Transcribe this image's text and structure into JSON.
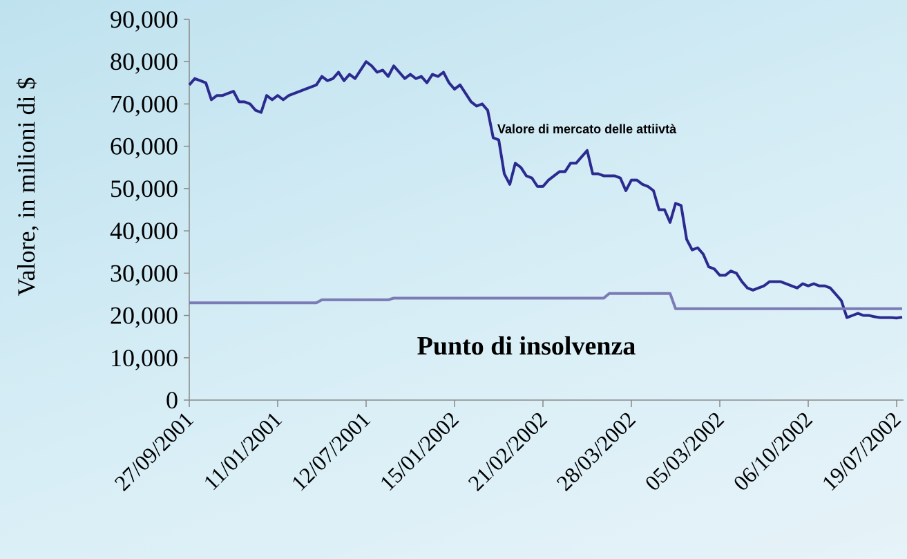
{
  "chart_data": {
    "type": "line",
    "ylabel": "Valore, in milioni di $",
    "annotations": [
      "Valore di mercato delle attiivtà",
      "Punto di insolvenza"
    ],
    "categories": [
      "27/09/2001",
      null,
      null,
      null,
      null,
      null,
      null,
      null,
      null,
      null,
      null,
      null,
      null,
      null,
      null,
      null,
      "11/01/2001",
      null,
      null,
      null,
      null,
      null,
      null,
      null,
      null,
      null,
      null,
      null,
      null,
      null,
      null,
      null,
      "12/07/2001",
      null,
      null,
      null,
      null,
      null,
      null,
      null,
      null,
      null,
      null,
      null,
      null,
      null,
      null,
      null,
      "15/01/2002",
      null,
      null,
      null,
      null,
      null,
      null,
      null,
      null,
      null,
      null,
      null,
      null,
      null,
      null,
      null,
      "21/02/2002",
      null,
      null,
      null,
      null,
      null,
      null,
      null,
      null,
      null,
      null,
      null,
      null,
      null,
      null,
      null,
      "28/03/2002",
      null,
      null,
      null,
      null,
      null,
      null,
      null,
      null,
      null,
      null,
      null,
      null,
      null,
      null,
      null,
      "05/03/2002",
      null,
      null,
      null,
      null,
      null,
      null,
      null,
      null,
      null,
      null,
      null,
      null,
      null,
      null,
      null,
      "06/10/2002",
      null,
      null,
      null,
      null,
      null,
      null,
      null,
      null,
      null,
      null,
      null,
      null,
      null,
      null,
      null,
      "19/07/2002",
      null
    ],
    "series": [
      {
        "color": "#2b2b8f",
        "values": [
          74500,
          76000,
          75500,
          75000,
          71000,
          72000,
          72000,
          72500,
          73000,
          70500,
          70500,
          70000,
          68500,
          68000,
          72000,
          71000,
          72000,
          71000,
          72000,
          72500,
          73000,
          73500,
          74000,
          74500,
          76500,
          75500,
          76000,
          77500,
          75500,
          77000,
          76000,
          78000,
          80000,
          79000,
          77500,
          78000,
          76500,
          79000,
          77500,
          76000,
          77000,
          76000,
          76500,
          75000,
          77000,
          76500,
          77500,
          75000,
          73500,
          74500,
          72500,
          70500,
          69500,
          70000,
          68500,
          62000,
          61500,
          53500,
          51000,
          56000,
          55000,
          53000,
          52500,
          50500,
          50500,
          52000,
          53000,
          54000,
          54000,
          56000,
          56000,
          57500,
          59000,
          53500,
          53500,
          53000,
          53000,
          53000,
          52500,
          49500,
          52000,
          52000,
          51000,
          50500,
          49500,
          45000,
          45000,
          42000,
          46500,
          46000,
          38000,
          35500,
          36000,
          34500,
          31500,
          31000,
          29500,
          29500,
          30500,
          30000,
          28000,
          26500,
          26000,
          26500,
          27000,
          28000,
          28000,
          28000,
          27500,
          27000,
          26500,
          27500,
          27000,
          27500,
          27000,
          27000,
          26500,
          25000,
          23500,
          19500,
          20000,
          20500,
          20000,
          20000,
          19700,
          19500,
          19500,
          19500,
          19400,
          19600
        ]
      },
      {
        "color": "#7b7bb5",
        "values": [
          23000,
          23000,
          23000,
          23000,
          23000,
          23000,
          23000,
          23000,
          23000,
          23000,
          23000,
          23000,
          23000,
          23000,
          23000,
          23000,
          23000,
          23000,
          23000,
          23000,
          23000,
          23000,
          23000,
          23000,
          23700,
          23700,
          23700,
          23700,
          23700,
          23700,
          23700,
          23700,
          23700,
          23700,
          23700,
          23700,
          23700,
          24100,
          24100,
          24100,
          24100,
          24100,
          24100,
          24100,
          24100,
          24100,
          24100,
          24100,
          24100,
          24100,
          24100,
          24100,
          24100,
          24100,
          24100,
          24100,
          24100,
          24100,
          24100,
          24100,
          24100,
          24100,
          24100,
          24100,
          24100,
          24100,
          24100,
          24100,
          24100,
          24100,
          24100,
          24100,
          24100,
          24100,
          24100,
          24100,
          25200,
          25200,
          25200,
          25200,
          25200,
          25200,
          25200,
          25200,
          25200,
          25200,
          25200,
          25200,
          21600,
          21600,
          21600,
          21600,
          21600,
          21600,
          21600,
          21600,
          21600,
          21600,
          21600,
          21600,
          21600,
          21600,
          21600,
          21600,
          21600,
          21600,
          21600,
          21600,
          21600,
          21600,
          21600,
          21600,
          21600,
          21600,
          21600,
          21600,
          21600,
          21600,
          21600,
          21600,
          21600,
          21600,
          21600,
          21600,
          21600,
          21600,
          21600,
          21600,
          21600,
          21600
        ]
      }
    ],
    "ylim": [
      0,
      90000
    ],
    "yticks": [
      0,
      {
        "value": 10000,
        "label": "10,000"
      },
      {
        "value": 20000,
        "label": "20,000"
      },
      {
        "value": 30000,
        "label": "30,000"
      },
      {
        "value": 40000,
        "label": "40,000"
      },
      {
        "value": 50000,
        "label": "50,000"
      },
      {
        "value": 60000,
        "label": "60,000"
      },
      {
        "value": 70000,
        "label": "70,000"
      },
      {
        "value": 80000,
        "label": "80,000"
      },
      {
        "value": 90000,
        "label": "90,000"
      }
    ]
  }
}
